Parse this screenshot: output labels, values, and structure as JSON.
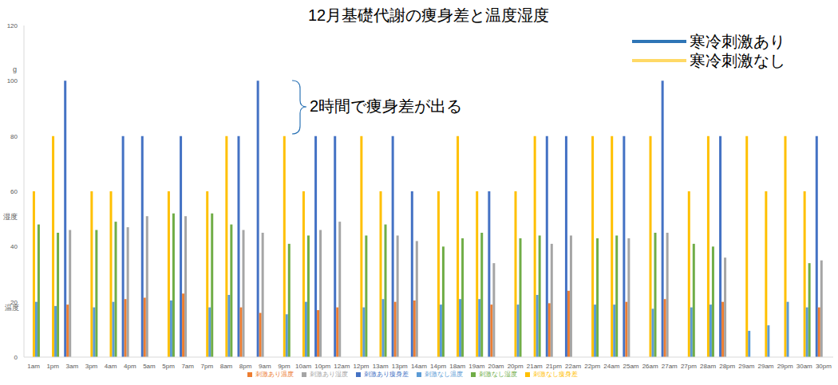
{
  "chart_data": {
    "type": "bar",
    "title": "12月基礎代謝の痩身差と温度湿度",
    "annotations": {
      "brace": "2時間で痩身差が出る",
      "y_units": [
        "g",
        "湿度",
        "温度"
      ],
      "key": [
        {
          "text": "寒冷刺激あり",
          "color": "#2e75b6"
        },
        {
          "text": "寒冷刺激なし",
          "color": "#ffd966"
        }
      ]
    },
    "categories": [
      "1am",
      "1pm",
      "3am",
      "3pm",
      "4am",
      "4pm",
      "5am",
      "5pm",
      "7am",
      "7pm",
      "8am",
      "8pm",
      "9am",
      "9pm",
      "10am",
      "10pm",
      "12am",
      "12pm",
      "13am",
      "13pm",
      "14am",
      "14pm",
      "18am",
      "19am",
      "20am",
      "20pm",
      "21am",
      "21pm",
      "22am",
      "22pm",
      "24am",
      "25am",
      "26am",
      "27am",
      "27pm",
      "28am",
      "28pm",
      "29am",
      "29am",
      "29pm",
      "30am",
      "30pm"
    ],
    "ylim": [
      0,
      120
    ],
    "yticks": [
      0,
      20,
      40,
      60,
      80,
      100,
      120
    ],
    "grid": false,
    "legend": "bottom",
    "series": [
      {
        "name": "刺激あり痩身差",
        "color": "#4472c4",
        "values": [
          null,
          null,
          100,
          null,
          null,
          80,
          80,
          null,
          80,
          null,
          null,
          80,
          100,
          null,
          null,
          80,
          80,
          null,
          null,
          80,
          60,
          null,
          null,
          null,
          60,
          null,
          null,
          80,
          80,
          null,
          null,
          80,
          null,
          100,
          null,
          null,
          80,
          null,
          null,
          null,
          null,
          80
        ]
      },
      {
        "name": "刺激あり温度",
        "color": "#ed7d31",
        "values": [
          null,
          null,
          19,
          null,
          null,
          21,
          21.5,
          null,
          23,
          null,
          null,
          18,
          16,
          null,
          null,
          17,
          18,
          null,
          null,
          20,
          20.5,
          null,
          null,
          null,
          19,
          null,
          null,
          19.5,
          24,
          null,
          null,
          20,
          null,
          21,
          null,
          null,
          20,
          null,
          null,
          null,
          null,
          18
        ]
      },
      {
        "name": "刺激あり湿度",
        "color": "#a5a5a5",
        "values": [
          null,
          null,
          46,
          null,
          null,
          47,
          51,
          null,
          51,
          null,
          null,
          46,
          45,
          null,
          null,
          46,
          49,
          null,
          null,
          44,
          42,
          null,
          null,
          null,
          34,
          null,
          null,
          41,
          44,
          null,
          null,
          43,
          null,
          45,
          null,
          null,
          36,
          null,
          null,
          null,
          null,
          35
        ]
      },
      {
        "name": "刺激なし痩身差",
        "color": "#ffc000",
        "values": [
          60,
          80,
          null,
          60,
          60,
          null,
          null,
          60,
          null,
          60,
          80,
          null,
          null,
          80,
          60,
          null,
          null,
          80,
          60,
          null,
          null,
          60,
          80,
          60,
          null,
          60,
          80,
          null,
          null,
          80,
          80,
          null,
          80,
          null,
          60,
          80,
          null,
          80,
          60,
          80,
          60,
          null
        ]
      },
      {
        "name": "刺激なし温度",
        "color": "#5b9bd5",
        "values": [
          20,
          18.5,
          null,
          18,
          20,
          null,
          null,
          20.5,
          null,
          18,
          22.5,
          null,
          null,
          15.5,
          20,
          null,
          null,
          18,
          21,
          null,
          null,
          19,
          21,
          21,
          null,
          19,
          22.5,
          null,
          null,
          19,
          19,
          null,
          17.5,
          null,
          18,
          19,
          null,
          9.5,
          11.5,
          20,
          18,
          null
        ]
      },
      {
        "name": "刺激なし湿度",
        "color": "#70ad47",
        "values": [
          48,
          45,
          null,
          46,
          49,
          null,
          null,
          52,
          null,
          52,
          48,
          null,
          null,
          41,
          44,
          null,
          null,
          44,
          48,
          null,
          null,
          40,
          43,
          45,
          null,
          43,
          44,
          null,
          null,
          43,
          44,
          null,
          45,
          null,
          41,
          40,
          null,
          null,
          null,
          null,
          34,
          null
        ]
      }
    ]
  }
}
